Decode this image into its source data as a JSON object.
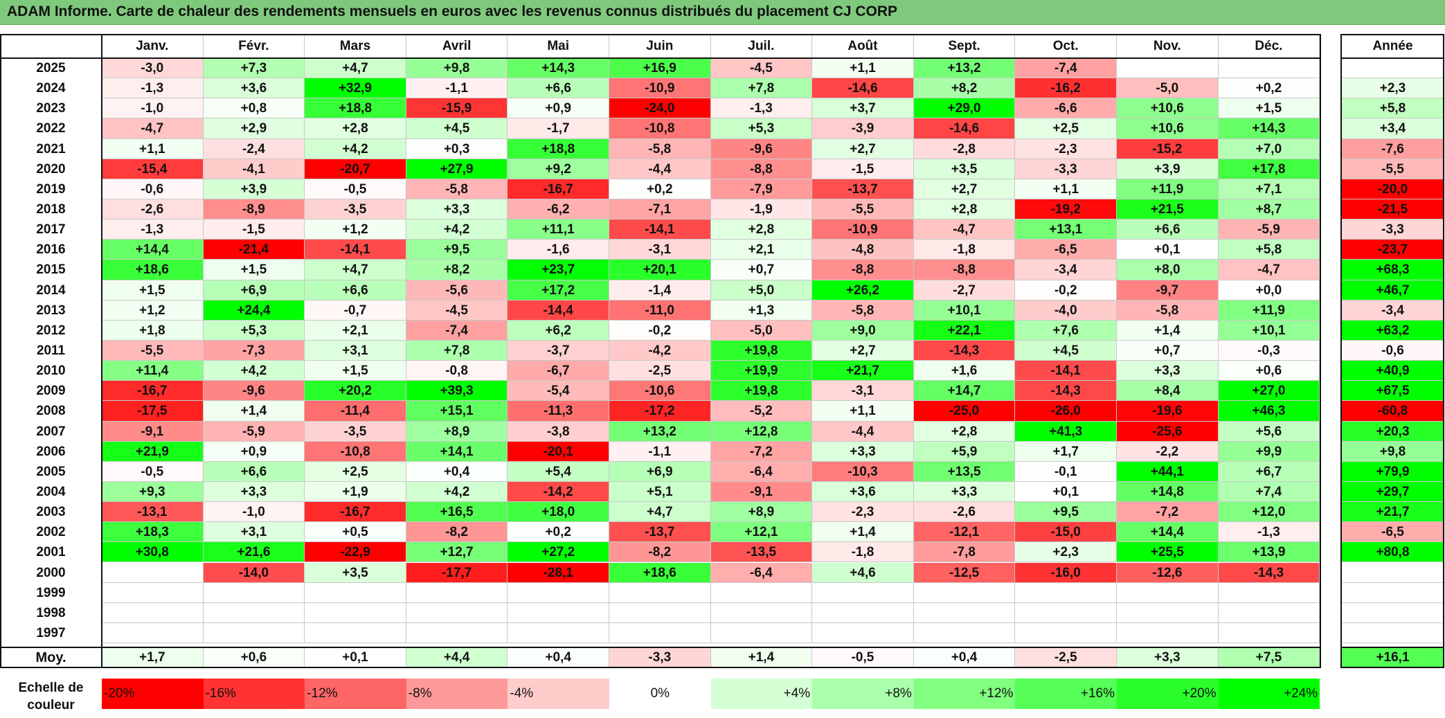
{
  "title": "ADAM Informe. Carte de chaleur des rendements mensuels en euros avec les revenus connus distribués du placement CJ CORP",
  "chart_data": {
    "type": "heatmap",
    "months": [
      "Janv.",
      "Févr.",
      "Mars",
      "Avril",
      "Mai",
      "Juin",
      "Juil.",
      "Août",
      "Sept.",
      "Oct.",
      "Nov.",
      "Déc."
    ],
    "annual_label": "Année",
    "rows": [
      {
        "year": "2025",
        "values": [
          "-3,0",
          "+7,3",
          "+4,7",
          "+9,8",
          "+14,3",
          "+16,9",
          "-4,5",
          "+1,1",
          "+13,2",
          "-7,4",
          "",
          ""
        ],
        "annual": ""
      },
      {
        "year": "2024",
        "values": [
          "-1,3",
          "+3,6",
          "+32,9",
          "-1,1",
          "+6,6",
          "-10,9",
          "+7,8",
          "-14,6",
          "+8,2",
          "-16,2",
          "-5,0",
          "+0,2"
        ],
        "annual": "+2,3"
      },
      {
        "year": "2023",
        "values": [
          "-1,0",
          "+0,8",
          "+18,8",
          "-15,9",
          "+0,9",
          "-24,0",
          "-1,3",
          "+3,7",
          "+29,0",
          "-6,6",
          "+10,6",
          "+1,5"
        ],
        "annual": "+5,8"
      },
      {
        "year": "2022",
        "values": [
          "-4,7",
          "+2,9",
          "+2,8",
          "+4,5",
          "-1,7",
          "-10,8",
          "+5,3",
          "-3,9",
          "-14,6",
          "+2,5",
          "+10,6",
          "+14,3"
        ],
        "annual": "+3,4"
      },
      {
        "year": "2021",
        "values": [
          "+1,1",
          "-2,4",
          "+4,2",
          "+0,3",
          "+18,8",
          "-5,8",
          "-9,6",
          "+2,7",
          "-2,8",
          "-2,3",
          "-15,2",
          "+7,0"
        ],
        "annual": "-7,6"
      },
      {
        "year": "2020",
        "values": [
          "-15,4",
          "-4,1",
          "-20,7",
          "+27,9",
          "+9,2",
          "-4,4",
          "-8,8",
          "-1,5",
          "+3,5",
          "-3,3",
          "+3,9",
          "+17,8"
        ],
        "annual": "-5,5"
      },
      {
        "year": "2019",
        "values": [
          "-0,6",
          "+3,9",
          "-0,5",
          "-5,8",
          "-16,7",
          "+0,2",
          "-7,9",
          "-13,7",
          "+2,7",
          "+1,1",
          "+11,9",
          "+7,1"
        ],
        "annual": "-20,0"
      },
      {
        "year": "2018",
        "values": [
          "-2,6",
          "-8,9",
          "-3,5",
          "+3,3",
          "-6,2",
          "-7,1",
          "-1,9",
          "-5,5",
          "+2,8",
          "-19,2",
          "+21,5",
          "+8,7"
        ],
        "annual": "-21,5"
      },
      {
        "year": "2017",
        "values": [
          "-1,3",
          "-1,5",
          "+1,2",
          "+4,2",
          "+11,1",
          "-14,1",
          "+2,8",
          "-10,9",
          "-4,7",
          "+13,1",
          "+6,6",
          "-5,9"
        ],
        "annual": "-3,3"
      },
      {
        "year": "2016",
        "values": [
          "+14,4",
          "-21,4",
          "-14,1",
          "+9,5",
          "-1,6",
          "-3,1",
          "+2,1",
          "-4,8",
          "-1,8",
          "-6,5",
          "+0,1",
          "+5,8"
        ],
        "annual": "-23,7"
      },
      {
        "year": "2015",
        "values": [
          "+18,6",
          "+1,5",
          "+4,7",
          "+8,2",
          "+23,7",
          "+20,1",
          "+0,7",
          "-8,8",
          "-8,8",
          "-3,4",
          "+8,0",
          "-4,7"
        ],
        "annual": "+68,3"
      },
      {
        "year": "2014",
        "values": [
          "+1,5",
          "+6,9",
          "+6,6",
          "-5,6",
          "+17,2",
          "-1,4",
          "+5,0",
          "+26,2",
          "-2,7",
          "-0,2",
          "-9,7",
          "+0,0"
        ],
        "annual": "+46,7"
      },
      {
        "year": "2013",
        "values": [
          "+1,2",
          "+24,4",
          "-0,7",
          "-4,5",
          "-14,4",
          "-11,0",
          "+1,3",
          "-5,8",
          "+10,1",
          "-4,0",
          "-5,8",
          "+11,9"
        ],
        "annual": "-3,4"
      },
      {
        "year": "2012",
        "values": [
          "+1,8",
          "+5,3",
          "+2,1",
          "-7,4",
          "+6,2",
          "-0,2",
          "-5,0",
          "+9,0",
          "+22,1",
          "+7,6",
          "+1,4",
          "+10,1"
        ],
        "annual": "+63,2"
      },
      {
        "year": "2011",
        "values": [
          "-5,5",
          "-7,3",
          "+3,1",
          "+7,8",
          "-3,7",
          "-4,2",
          "+19,8",
          "+2,7",
          "-14,3",
          "+4,5",
          "+0,7",
          "-0,3"
        ],
        "annual": "-0,6"
      },
      {
        "year": "2010",
        "values": [
          "+11,4",
          "+4,2",
          "+1,5",
          "-0,8",
          "-6,7",
          "-2,5",
          "+19,9",
          "+21,7",
          "+1,6",
          "-14,1",
          "+3,3",
          "+0,6"
        ],
        "annual": "+40,9"
      },
      {
        "year": "2009",
        "values": [
          "-16,7",
          "-9,6",
          "+20,2",
          "+39,3",
          "-5,4",
          "-10,6",
          "+19,8",
          "-3,1",
          "+14,7",
          "-14,3",
          "+8,4",
          "+27,0"
        ],
        "annual": "+67,5"
      },
      {
        "year": "2008",
        "values": [
          "-17,5",
          "+1,4",
          "-11,4",
          "+15,1",
          "-11,3",
          "-17,2",
          "-5,2",
          "+1,1",
          "-25,0",
          "-26,0",
          "-19,6",
          "+46,3"
        ],
        "annual": "-60,8"
      },
      {
        "year": "2007",
        "values": [
          "-9,1",
          "-5,9",
          "-3,5",
          "+8,9",
          "-3,8",
          "+13,2",
          "+12,8",
          "-4,4",
          "+2,8",
          "+41,3",
          "-25,6",
          "+5,6"
        ],
        "annual": "+20,3"
      },
      {
        "year": "2006",
        "values": [
          "+21,9",
          "+0,9",
          "-10,8",
          "+14,1",
          "-20,1",
          "-1,1",
          "-7,2",
          "+3,3",
          "+5,9",
          "+1,7",
          "-2,2",
          "+9,9"
        ],
        "annual": "+9,8"
      },
      {
        "year": "2005",
        "values": [
          "-0,5",
          "+6,6",
          "+2,5",
          "+0,4",
          "+5,4",
          "+6,9",
          "-6,4",
          "-10,3",
          "+13,5",
          "-0,1",
          "+44,1",
          "+6,7"
        ],
        "annual": "+79,9"
      },
      {
        "year": "2004",
        "values": [
          "+9,3",
          "+3,3",
          "+1,9",
          "+4,2",
          "-14,2",
          "+5,1",
          "-9,1",
          "+3,6",
          "+3,3",
          "+0,1",
          "+14,8",
          "+7,4"
        ],
        "annual": "+29,7"
      },
      {
        "year": "2003",
        "values": [
          "-13,1",
          "-1,0",
          "-16,7",
          "+16,5",
          "+18,0",
          "+4,7",
          "+8,9",
          "-2,3",
          "-2,6",
          "+9,5",
          "-7,2",
          "+12,0"
        ],
        "annual": "+21,7"
      },
      {
        "year": "2002",
        "values": [
          "+18,3",
          "+3,1",
          "+0,5",
          "-8,2",
          "+0,2",
          "-13,7",
          "+12,1",
          "+1,4",
          "-12,1",
          "-15,0",
          "+14,4",
          "-1,3"
        ],
        "annual": "-6,5"
      },
      {
        "year": "2001",
        "values": [
          "+30,8",
          "+21,6",
          "-22,9",
          "+12,7",
          "+27,2",
          "-8,2",
          "-13,5",
          "-1,8",
          "-7,8",
          "+2,3",
          "+25,5",
          "+13,9"
        ],
        "annual": "+80,8"
      },
      {
        "year": "2000",
        "values": [
          "",
          "-14,0",
          "+3,5",
          "-17,7",
          "-28,1",
          "+18,6",
          "-6,4",
          "+4,6",
          "-12,5",
          "-16,0",
          "-12,6",
          "-14,3"
        ],
        "annual": ""
      },
      {
        "year": "1999",
        "values": [
          "",
          "",
          "",
          "",
          "",
          "",
          "",
          "",
          "",
          "",
          "",
          ""
        ],
        "annual": ""
      },
      {
        "year": "1998",
        "values": [
          "",
          "",
          "",
          "",
          "",
          "",
          "",
          "",
          "",
          "",
          "",
          ""
        ],
        "annual": ""
      },
      {
        "year": "1997",
        "values": [
          "",
          "",
          "",
          "",
          "",
          "",
          "",
          "",
          "",
          "",
          "",
          ""
        ],
        "annual": ""
      }
    ],
    "average": {
      "label": "Moy.",
      "values": [
        "+1,7",
        "+0,6",
        "+0,1",
        "+4,4",
        "+0,4",
        "-3,3",
        "+1,4",
        "-0,5",
        "+0,4",
        "-2,5",
        "+3,3",
        "+7,5"
      ],
      "annual": "+16,1"
    },
    "legend": {
      "label_line1": "Echelle de",
      "label_line2": "couleur",
      "stops": [
        {
          "label": "-20%",
          "value": -20
        },
        {
          "label": "-16%",
          "value": -16
        },
        {
          "label": "-12%",
          "value": -12
        },
        {
          "label": "-8%",
          "value": -8
        },
        {
          "label": "-4%",
          "value": -4
        },
        {
          "label": "0%",
          "value": 0
        },
        {
          "label": "+4%",
          "value": 4
        },
        {
          "label": "+8%",
          "value": 8
        },
        {
          "label": "+12%",
          "value": 12
        },
        {
          "label": "+16%",
          "value": 16
        },
        {
          "label": "+20%",
          "value": 20
        },
        {
          "label": "+24%",
          "value": 24
        }
      ]
    },
    "color_scale": {
      "negative": "#ff0000",
      "neutral": "#ffffff",
      "positive": "#00ff00",
      "saturate_at": 24
    }
  }
}
